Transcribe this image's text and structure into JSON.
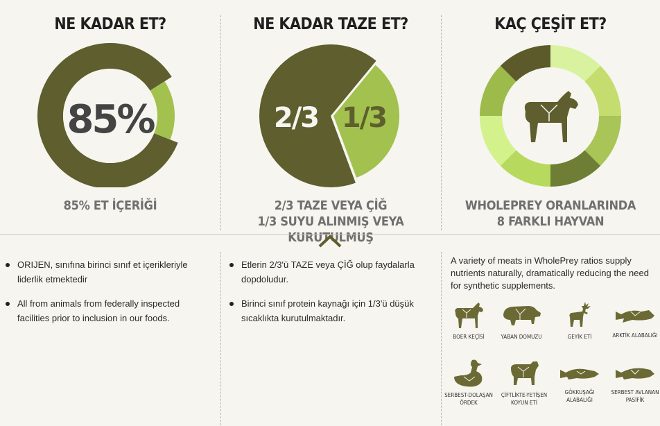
{
  "col1": {
    "title": "NE KADAR ET?",
    "center_label": "85%",
    "caption": "85% ET İÇERİĞİ"
  },
  "col2": {
    "title": "NE KADAR TAZE ET?",
    "label_fresh": "2/3",
    "label_dried": "1/3",
    "caption_line1": "2/3 TAZE VEYA ÇİĞ",
    "caption_line2": "1/3 SUYU ALINMIŞ VEYA KURUTULMUŞ"
  },
  "col3": {
    "title": "KAÇ ÇEŞİT ET?",
    "caption_line1": "WHOLEPREY ORANLARINDA",
    "caption_line2": "8 FARKLI HAYVAN"
  },
  "chart_data": [
    {
      "type": "pie",
      "title": "NE KADAR ET?",
      "donut": true,
      "center_label": "85%",
      "slices": [
        {
          "label": "Et",
          "value": 85,
          "color": "#5e5e2e"
        },
        {
          "label": "",
          "value": 15,
          "color": "#a3c14e"
        }
      ]
    },
    {
      "type": "pie",
      "title": "NE KADAR TAZE ET?",
      "slices": [
        {
          "label": "2/3",
          "value": 66.67,
          "color": "#5e5e2e"
        },
        {
          "label": "1/3",
          "value": 33.33,
          "color": "#a3c14e"
        }
      ]
    },
    {
      "type": "pie",
      "title": "KAÇ ÇEŞİT ET?",
      "donut": true,
      "slices": [
        {
          "label": "",
          "value": 1,
          "color": "#d9f2a0"
        },
        {
          "label": "",
          "value": 1,
          "color": "#c5dc6e"
        },
        {
          "label": "",
          "value": 1,
          "color": "#a9c457"
        },
        {
          "label": "",
          "value": 1,
          "color": "#6e7f35"
        },
        {
          "label": "",
          "value": 1,
          "color": "#b7d95e"
        },
        {
          "label": "",
          "value": 1,
          "color": "#d3f28c"
        },
        {
          "label": "",
          "value": 1,
          "color": "#9dbb4a"
        },
        {
          "label": "",
          "value": 1,
          "color": "#5c5a2a"
        }
      ]
    }
  ],
  "bottom": {
    "col1_bullets": [
      "ORIJEN, sınıfına birinci sınıf et içerikleriyle liderlik etmektedir",
      "All from animals from federally inspected facilities prior to inclusion in our foods."
    ],
    "col2_bullets": [
      "Etlerin 2/3'ü TAZE veya ÇİĞ olup faydalarla dopdoludur.",
      "Birinci sınıf protein kaynağı için 1/3'ü düşük sıcaklıkta kurutulmaktadır."
    ],
    "col3_intro": "A variety of meats in WholePrey ratios supply nutrients naturally, dramatically reducing the need for synthetic supplements.",
    "animals": [
      {
        "label": "BOER KEÇİSİ",
        "icon": "goat-icon"
      },
      {
        "label": "YABAN DOMUZU",
        "icon": "boar-icon"
      },
      {
        "label": "GEYİK ETİ",
        "icon": "deer-icon"
      },
      {
        "label": "ARKTİK ALABALIĞI",
        "icon": "arctic-char-icon"
      },
      {
        "label": "SERBEST-DOLAŞAN ÖRDEK",
        "icon": "duck-icon"
      },
      {
        "label": "ÇİFTLİKTE-YETİŞEN KOYUN ETİ",
        "icon": "sheep-icon"
      },
      {
        "label": "GÖKKUŞAĞI ALABALIĞI",
        "icon": "rainbow-trout-icon"
      },
      {
        "label": "SERBEST AVLANAN PASİFİK",
        "icon": "pacific-fish-icon"
      }
    ]
  },
  "colors": {
    "dark_olive": "#5e5e2e",
    "light_green": "#a3c14e",
    "background": "#f6f5ef"
  }
}
